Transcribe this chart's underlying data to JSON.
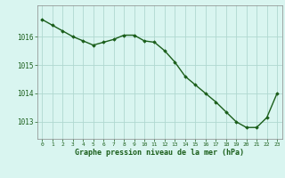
{
  "x": [
    0,
    1,
    2,
    3,
    4,
    5,
    6,
    7,
    8,
    9,
    10,
    11,
    12,
    13,
    14,
    15,
    16,
    17,
    18,
    19,
    20,
    21,
    22,
    23
  ],
  "y": [
    1016.6,
    1016.4,
    1016.2,
    1016.0,
    1015.85,
    1015.7,
    1015.8,
    1015.9,
    1016.05,
    1016.05,
    1015.85,
    1015.8,
    1015.5,
    1015.1,
    1014.6,
    1014.3,
    1014.0,
    1013.7,
    1013.35,
    1013.0,
    1012.8,
    1012.8,
    1013.15,
    1014.0
  ],
  "line_color": "#1a5e1a",
  "marker": "D",
  "marker_size": 1.8,
  "bg_color": "#d9f5f0",
  "grid_color": "#b0d8d0",
  "xlabel": "Graphe pression niveau de la mer (hPa)",
  "xlabel_color": "#1a5e1a",
  "tick_color": "#1a5e1a",
  "ylim": [
    1012.4,
    1017.1
  ],
  "yticks": [
    1013,
    1014,
    1015,
    1016
  ],
  "line_width": 1.0,
  "border_color": "#888888",
  "xtick_fontsize": 4.5,
  "ytick_fontsize": 5.5,
  "xlabel_fontsize": 6.0
}
